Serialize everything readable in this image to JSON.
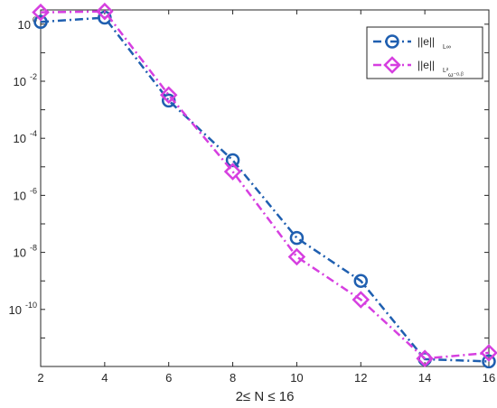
{
  "chart_data": {
    "type": "line",
    "xlabel": "2≤ N ≤ 16",
    "ylabel": "",
    "title": "",
    "yscale": "log",
    "xlim": [
      2,
      16
    ],
    "ylim_exponent": [
      -12,
      0.5
    ],
    "x_ticks": [
      "2",
      "4",
      "6",
      "8",
      "10",
      "12",
      "14",
      "16"
    ],
    "y_ticks": [
      {
        "base": "10",
        "exp": "0"
      },
      {
        "base": "10",
        "exp": "-2"
      },
      {
        "base": "10",
        "exp": "-4"
      },
      {
        "base": "10",
        "exp": "-6"
      },
      {
        "base": "10",
        "exp": "-8"
      },
      {
        "base": "10",
        "exp": "-10"
      }
    ],
    "x": [
      2,
      4,
      6,
      8,
      10,
      12,
      14,
      16
    ],
    "grid": false,
    "legend_position": "top-right",
    "series": [
      {
        "name": "||e||",
        "name_sub": "L∞",
        "color": "#1f5fb0",
        "marker": "circle",
        "values": [
          1.2,
          1.7,
          0.0021,
          1.7e-05,
          3.2e-08,
          1e-09,
          1.8e-12,
          1.5e-12
        ]
      },
      {
        "name": "||e||",
        "name_sub": "L²",
        "name_sub2": "ω⁻ᵅ·ᵝ",
        "color": "#d63fe0",
        "marker": "diamond",
        "values": [
          2.6,
          2.8,
          0.0033,
          6.8e-06,
          7e-09,
          2.2e-10,
          1.9e-12,
          3e-12
        ]
      }
    ]
  }
}
